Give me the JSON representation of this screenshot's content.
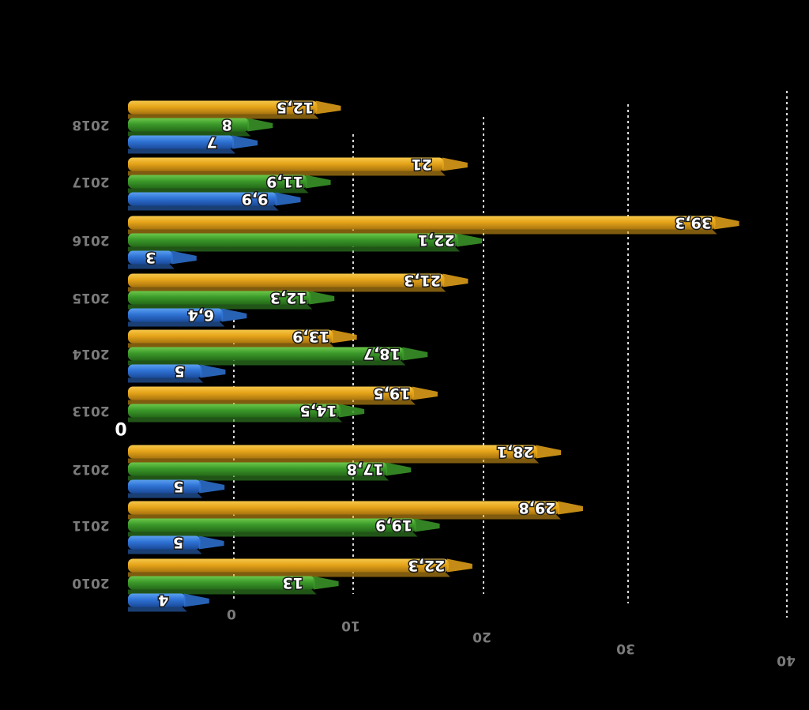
{
  "chart_data": {
    "type": "bar",
    "orientation": "horizontal-3d",
    "mirrored": true,
    "categories": [
      "2010",
      "2011",
      "2012",
      "2013",
      "2014",
      "2015",
      "2016",
      "2017",
      "2018"
    ],
    "series": [
      {
        "name": "blue",
        "color": "#2f73d4",
        "values": [
          4,
          5,
          5,
          0,
          5,
          6.4,
          3,
          9.9,
          7
        ],
        "labels": [
          "4",
          "5",
          "5",
          "0",
          "5",
          "6,4",
          "3",
          "9,9",
          "7"
        ]
      },
      {
        "name": "green",
        "color": "#3c9a2a",
        "values": [
          13,
          19.9,
          17.8,
          14.5,
          18.7,
          12.3,
          22.1,
          11.9,
          8
        ],
        "labels": [
          "13",
          "19,9",
          "17,8",
          "14,5",
          "18,7",
          "12,3",
          "22,1",
          "11,9",
          "8"
        ]
      },
      {
        "name": "orange",
        "color": "#e6a51a",
        "values": [
          22.3,
          29.8,
          28.1,
          19.5,
          13.9,
          21.3,
          39.3,
          21,
          12.5
        ],
        "labels": [
          "22,3",
          "29,8",
          "28,1",
          "19,5",
          "13,9",
          "21,3",
          "39,3",
          "21",
          "12,5"
        ]
      }
    ],
    "x_ticks": [
      "0",
      "10",
      "20",
      "30",
      "40"
    ],
    "xlim": [
      0,
      40
    ],
    "zero_marker": "0",
    "grid": true,
    "legend": "none"
  }
}
